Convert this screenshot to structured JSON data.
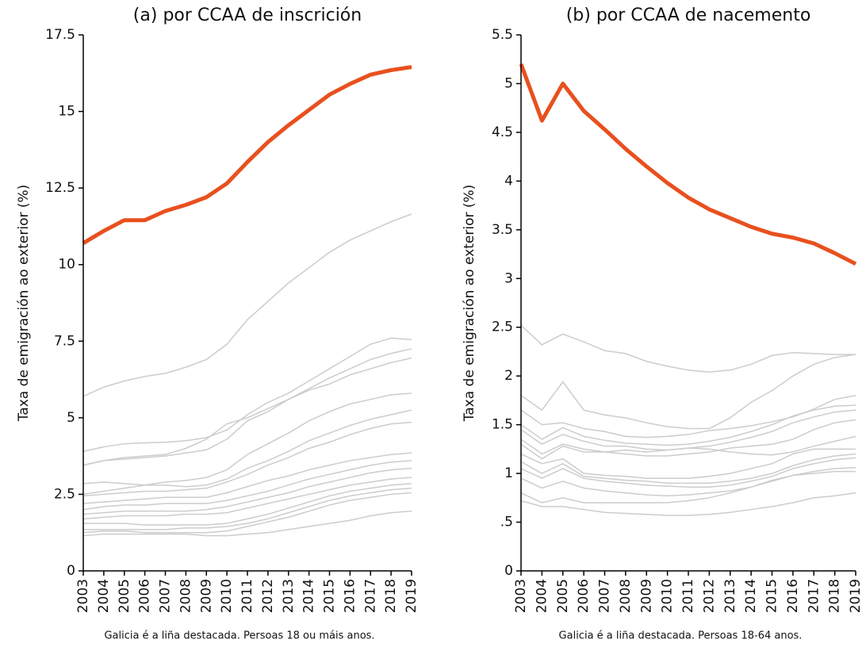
{
  "chart_data": [
    {
      "type": "line",
      "title": "(a) por CCAA de inscrición",
      "ylabel": "Taxa de emigración ao exterior (%)",
      "note": "Galicia é a liña destacada. Persoas 18 ou máis anos.",
      "x": [
        2003,
        2004,
        2005,
        2006,
        2007,
        2008,
        2009,
        2010,
        2011,
        2012,
        2013,
        2014,
        2015,
        2016,
        2017,
        2018,
        2019
      ],
      "xlim": [
        2003,
        2019
      ],
      "ylim": [
        0,
        17.5
      ],
      "yticks": [
        0,
        2.5,
        5,
        7.5,
        10,
        12.5,
        15,
        17.5
      ],
      "series": [
        {
          "color": "#cccccc",
          "values": [
            5.7,
            6.0,
            6.2,
            6.35,
            6.45,
            6.65,
            6.9,
            7.4,
            8.2,
            8.8,
            9.4,
            9.9,
            10.4,
            10.8,
            11.1,
            11.4,
            11.65
          ]
        },
        {
          "color": "#cccccc",
          "values": [
            3.9,
            4.05,
            4.15,
            4.18,
            4.2,
            4.25,
            4.35,
            4.6,
            5.1,
            5.5,
            5.8,
            6.2,
            6.6,
            7.0,
            7.4,
            7.6,
            7.55
          ]
        },
        {
          "color": "#cccccc",
          "values": [
            3.45,
            3.6,
            3.7,
            3.75,
            3.8,
            4.0,
            4.3,
            4.8,
            5.0,
            5.3,
            5.6,
            5.95,
            6.3,
            6.6,
            6.9,
            7.1,
            7.25
          ]
        },
        {
          "color": "#cccccc",
          "values": [
            3.45,
            3.6,
            3.65,
            3.7,
            3.75,
            3.85,
            3.95,
            4.3,
            4.9,
            5.2,
            5.6,
            5.9,
            6.1,
            6.4,
            6.6,
            6.8,
            6.95
          ]
        },
        {
          "color": "#cccccc",
          "values": [
            2.5,
            2.6,
            2.7,
            2.8,
            2.9,
            2.95,
            3.05,
            3.3,
            3.8,
            4.15,
            4.5,
            4.9,
            5.2,
            5.45,
            5.6,
            5.75,
            5.8
          ]
        },
        {
          "color": "#cccccc",
          "values": [
            2.85,
            2.9,
            2.85,
            2.8,
            2.8,
            2.75,
            2.8,
            3.0,
            3.35,
            3.6,
            3.9,
            4.25,
            4.5,
            4.75,
            4.95,
            5.1,
            5.25
          ]
        },
        {
          "color": "#cccccc",
          "values": [
            2.45,
            2.5,
            2.55,
            2.6,
            2.6,
            2.65,
            2.7,
            2.9,
            3.15,
            3.45,
            3.7,
            4.0,
            4.2,
            4.45,
            4.65,
            4.8,
            4.85
          ]
        },
        {
          "color": "#cccccc",
          "values": [
            2.2,
            2.25,
            2.3,
            2.35,
            2.4,
            2.4,
            2.4,
            2.55,
            2.75,
            2.95,
            3.1,
            3.3,
            3.45,
            3.6,
            3.7,
            3.8,
            3.85
          ]
        },
        {
          "color": "#cccccc",
          "values": [
            2.0,
            2.1,
            2.15,
            2.15,
            2.2,
            2.2,
            2.2,
            2.3,
            2.45,
            2.6,
            2.8,
            3.0,
            3.15,
            3.3,
            3.45,
            3.55,
            3.6
          ]
        },
        {
          "color": "#cccccc",
          "values": [
            1.85,
            1.9,
            1.95,
            1.95,
            1.95,
            1.95,
            2.0,
            2.1,
            2.25,
            2.4,
            2.55,
            2.75,
            2.9,
            3.05,
            3.2,
            3.3,
            3.35
          ]
        },
        {
          "color": "#cccccc",
          "values": [
            1.7,
            1.75,
            1.8,
            1.8,
            1.8,
            1.85,
            1.85,
            1.9,
            2.05,
            2.2,
            2.35,
            2.5,
            2.65,
            2.8,
            2.9,
            3.0,
            3.05
          ]
        },
        {
          "color": "#cccccc",
          "values": [
            1.55,
            1.55,
            1.55,
            1.5,
            1.5,
            1.5,
            1.5,
            1.55,
            1.7,
            1.85,
            2.05,
            2.25,
            2.45,
            2.6,
            2.7,
            2.8,
            2.85
          ]
        },
        {
          "color": "#cccccc",
          "values": [
            1.35,
            1.35,
            1.35,
            1.35,
            1.35,
            1.4,
            1.4,
            1.45,
            1.55,
            1.7,
            1.9,
            2.1,
            2.3,
            2.45,
            2.55,
            2.65,
            2.7
          ]
        },
        {
          "color": "#cccccc",
          "values": [
            1.25,
            1.3,
            1.3,
            1.25,
            1.25,
            1.25,
            1.25,
            1.3,
            1.45,
            1.6,
            1.75,
            1.95,
            2.15,
            2.3,
            2.4,
            2.5,
            2.55
          ]
        },
        {
          "color": "#cccccc",
          "values": [
            1.15,
            1.2,
            1.2,
            1.2,
            1.2,
            1.2,
            1.15,
            1.15,
            1.2,
            1.25,
            1.35,
            1.45,
            1.55,
            1.65,
            1.8,
            1.9,
            1.95
          ]
        },
        {
          "color": "#e8501e",
          "values": [
            10.7,
            11.1,
            11.45,
            11.45,
            11.75,
            11.95,
            12.2,
            12.65,
            13.35,
            14.0,
            14.55,
            15.05,
            15.55,
            15.9,
            16.2,
            16.35,
            16.45
          ]
        }
      ]
    },
    {
      "type": "line",
      "title": "(b) por CCAA de nacemento",
      "ylabel": "Taxa de emigración ao exterior (%)",
      "note": "Galicia é a liña destacada. Persoas 18-64 anos.",
      "x": [
        2003,
        2004,
        2005,
        2006,
        2007,
        2008,
        2009,
        2010,
        2011,
        2012,
        2013,
        2014,
        2015,
        2016,
        2017,
        2018,
        2019
      ],
      "xlim": [
        2003,
        2019
      ],
      "ylim": [
        0,
        5.5
      ],
      "yticks": [
        0,
        {
          "value": 0.5,
          "label": ".5"
        },
        1,
        1.5,
        2,
        2.5,
        3,
        3.5,
        4,
        4.5,
        5,
        5.5
      ],
      "series": [
        {
          "color": "#cccccc",
          "values": [
            2.52,
            2.32,
            2.43,
            2.35,
            2.26,
            2.23,
            2.15,
            2.1,
            2.06,
            2.04,
            2.06,
            2.12,
            2.21,
            2.24,
            2.23,
            2.22,
            2.22
          ]
        },
        {
          "color": "#cccccc",
          "values": [
            1.8,
            1.65,
            1.94,
            1.65,
            1.6,
            1.57,
            1.52,
            1.48,
            1.46,
            1.46,
            1.57,
            1.73,
            1.85,
            2.0,
            2.12,
            2.19,
            2.22
          ]
        },
        {
          "color": "#cccccc",
          "values": [
            1.65,
            1.5,
            1.52,
            1.46,
            1.43,
            1.38,
            1.37,
            1.38,
            1.4,
            1.44,
            1.46,
            1.49,
            1.53,
            1.58,
            1.66,
            1.76,
            1.8
          ]
        },
        {
          "color": "#cccccc",
          "values": [
            1.5,
            1.35,
            1.47,
            1.38,
            1.34,
            1.31,
            1.3,
            1.29,
            1.3,
            1.33,
            1.37,
            1.43,
            1.5,
            1.59,
            1.65,
            1.69,
            1.7
          ]
        },
        {
          "color": "#cccccc",
          "values": [
            1.45,
            1.3,
            1.4,
            1.33,
            1.28,
            1.28,
            1.25,
            1.24,
            1.26,
            1.28,
            1.32,
            1.37,
            1.43,
            1.52,
            1.58,
            1.63,
            1.65
          ]
        },
        {
          "color": "#cccccc",
          "values": [
            1.35,
            1.2,
            1.3,
            1.25,
            1.22,
            1.24,
            1.22,
            1.24,
            1.26,
            1.25,
            1.22,
            1.2,
            1.19,
            1.22,
            1.28,
            1.33,
            1.38
          ]
        },
        {
          "color": "#cccccc",
          "values": [
            1.3,
            1.15,
            1.28,
            1.22,
            1.22,
            1.2,
            1.18,
            1.18,
            1.2,
            1.22,
            1.26,
            1.28,
            1.3,
            1.35,
            1.45,
            1.52,
            1.55
          ]
        },
        {
          "color": "#cccccc",
          "values": [
            1.2,
            1.1,
            1.15,
            1.0,
            0.98,
            0.97,
            0.95,
            0.95,
            0.95,
            0.97,
            1.0,
            1.05,
            1.1,
            1.2,
            1.25,
            1.25,
            1.25
          ]
        },
        {
          "color": "#cccccc",
          "values": [
            1.12,
            1.0,
            1.1,
            0.97,
            0.95,
            0.93,
            0.92,
            0.9,
            0.9,
            0.9,
            0.92,
            0.95,
            1.0,
            1.08,
            1.14,
            1.18,
            1.2
          ]
        },
        {
          "color": "#cccccc",
          "values": [
            1.05,
            0.95,
            1.05,
            0.95,
            0.92,
            0.9,
            0.88,
            0.87,
            0.86,
            0.86,
            0.88,
            0.92,
            0.97,
            1.05,
            1.1,
            1.14,
            1.16
          ]
        },
        {
          "color": "#cccccc",
          "values": [
            0.95,
            0.85,
            0.92,
            0.85,
            0.82,
            0.8,
            0.78,
            0.77,
            0.78,
            0.8,
            0.82,
            0.86,
            0.92,
            0.98,
            1.02,
            1.05,
            1.06
          ]
        },
        {
          "color": "#cccccc",
          "values": [
            0.8,
            0.7,
            0.75,
            0.7,
            0.7,
            0.7,
            0.7,
            0.7,
            0.72,
            0.75,
            0.8,
            0.86,
            0.93,
            0.98,
            1.0,
            1.02,
            1.02
          ]
        },
        {
          "color": "#cccccc",
          "values": [
            0.72,
            0.66,
            0.66,
            0.63,
            0.6,
            0.59,
            0.58,
            0.57,
            0.57,
            0.58,
            0.6,
            0.63,
            0.66,
            0.7,
            0.75,
            0.77,
            0.8
          ]
        },
        {
          "color": "#e8501e",
          "values": [
            5.2,
            4.62,
            5.0,
            4.72,
            4.53,
            4.33,
            4.15,
            3.98,
            3.83,
            3.71,
            3.62,
            3.53,
            3.46,
            3.42,
            3.36,
            3.26,
            3.15
          ]
        }
      ]
    }
  ]
}
